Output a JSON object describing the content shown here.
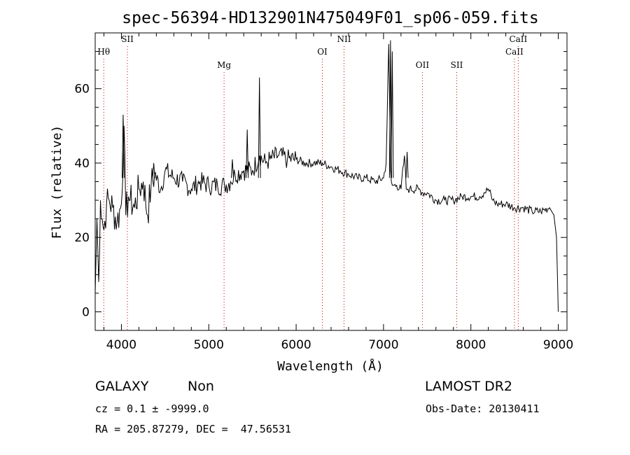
{
  "chart_data": {
    "type": "line",
    "title": "spec-56394-HD132901N475049F01_sp06-059.fits",
    "xlabel": "Wavelength (Å)",
    "ylabel": "Flux (relative)",
    "xlim": [
      3700,
      9100
    ],
    "ylim": [
      -5,
      75
    ],
    "xticks": [
      4000,
      5000,
      6000,
      7000,
      8000,
      9000
    ],
    "yticks": [
      0,
      20,
      40,
      60
    ],
    "grid": false,
    "series": [
      {
        "x": [
          3700,
          3720,
          3740,
          3760,
          3780,
          3800,
          3830,
          3860,
          3900,
          3950,
          4000,
          4030,
          4050,
          4080,
          4100,
          4150,
          4200,
          4250,
          4300,
          4340,
          4380,
          4450,
          4500,
          4600,
          4700,
          4800,
          4900,
          5000,
          5100,
          5180,
          5250,
          5300,
          5400,
          5500,
          5580,
          5650,
          5700,
          5800,
          5900,
          6000,
          6100,
          6200,
          6300,
          6400,
          6500,
          6600,
          6700,
          6800,
          6900,
          7000,
          7030,
          7060,
          7080,
          7090,
          7100,
          7150,
          7200,
          7240,
          7260,
          7280,
          7300,
          7400,
          7450,
          7500,
          7600,
          7700,
          7800,
          7900,
          8000,
          8100,
          8150,
          8200,
          8250,
          8300,
          8400,
          8500,
          8600,
          8700,
          8800,
          8900,
          8950,
          8980,
          9000
        ],
        "y": [
          5,
          25,
          8,
          30,
          25,
          22,
          29,
          30,
          28,
          24,
          29,
          50,
          26,
          31,
          30,
          28,
          33,
          35,
          26,
          34,
          37,
          33,
          38,
          36,
          35,
          33,
          35,
          34,
          34,
          34,
          35,
          37,
          38,
          38,
          42,
          40,
          41,
          42,
          41,
          41,
          40,
          40,
          40,
          39,
          38,
          37,
          36,
          36,
          35,
          36,
          40,
          72,
          38,
          35,
          34,
          34,
          33,
          42,
          33,
          33,
          33,
          33,
          32,
          32,
          30,
          30,
          30,
          31,
          31,
          31,
          32,
          33,
          30,
          29,
          29,
          28,
          28,
          27,
          27,
          28,
          26,
          20,
          0
        ]
      }
    ],
    "spikes": [
      {
        "x": 4020,
        "y": 53
      },
      {
        "x": 4370,
        "y": 40
      },
      {
        "x": 5270,
        "y": 41
      },
      {
        "x": 5440,
        "y": 49
      },
      {
        "x": 5580,
        "y": 63
      },
      {
        "x": 7080,
        "y": 73
      },
      {
        "x": 7100,
        "y": 70
      },
      {
        "x": 7270,
        "y": 43
      }
    ],
    "line_markers": [
      {
        "label": "Hθ",
        "x": 3798,
        "row": 1
      },
      {
        "label": "SII",
        "x": 4069,
        "row": 0
      },
      {
        "label": "Mg",
        "x": 5175,
        "row": 2
      },
      {
        "label": "OI",
        "x": 6300,
        "row": 1
      },
      {
        "label": "NII",
        "x": 6548,
        "row": 0
      },
      {
        "label": "OII",
        "x": 7445,
        "row": 2
      },
      {
        "label": "SII",
        "x": 7838,
        "row": 2
      },
      {
        "label": "CaII",
        "x": 8498,
        "row": 1
      },
      {
        "label": "CaII",
        "x": 8542,
        "row": 0
      }
    ],
    "line_color": "#000000",
    "marker_color": "#cc0000"
  },
  "info": {
    "object_class": "GALAXY",
    "subclass": "Non",
    "survey": "LAMOST DR2",
    "cz": "cz = 0.1 ± -9999.0",
    "obs_date": "Obs-Date: 20130411",
    "radec": "RA = 205.87279, DEC =  47.56531"
  }
}
